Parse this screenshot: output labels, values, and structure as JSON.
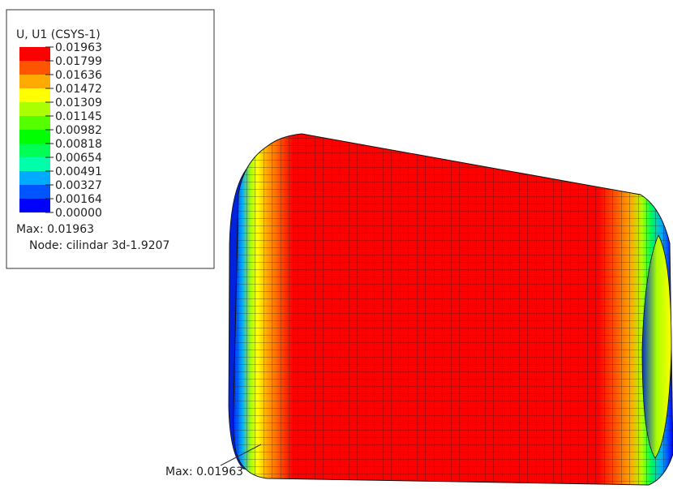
{
  "legend": {
    "title": "U, U1 (CSYS-1)",
    "labels": [
      "0.01963",
      "0.01799",
      "0.01636",
      "0.01472",
      "0.01309",
      "0.01145",
      "0.00982",
      "0.00818",
      "0.00654",
      "0.00491",
      "0.00327",
      "0.00164",
      "0.00000"
    ],
    "colors": [
      "#ff0000",
      "#ff5500",
      "#ffaa00",
      "#ffff00",
      "#aaff00",
      "#55ff00",
      "#00ff00",
      "#00ff55",
      "#00ffaa",
      "#00aaff",
      "#0055ff",
      "#0000ff"
    ],
    "max": "Max: 0.01963",
    "node": "Node: cilindar 3d-1.9207"
  },
  "annotation": "Max: 0.01963"
}
